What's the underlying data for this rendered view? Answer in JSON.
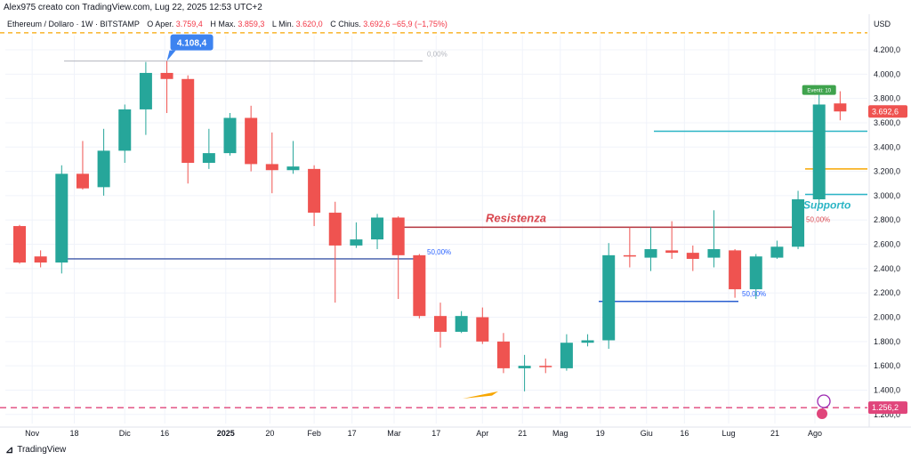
{
  "header": {
    "author_line": "Alex975 creato con TradingView.com, Lug 22, 2025 12:53 UTC+2",
    "symbol": "Ethereum / Dollaro · 1W · BITSTAMP",
    "open_label": "O",
    "open_name": "Aper.",
    "open": "3.759,4",
    "high_label": "H",
    "high_name": "Max.",
    "high": "3.859,3",
    "low_label": "L",
    "low_name": "Min.",
    "low": "3.620,0",
    "close_label": "C",
    "close_name": "Chius.",
    "close": "3.692,6",
    "change": "−65,9 (−1,75%)",
    "currency": "USD"
  },
  "footer": {
    "brand": "TradingView",
    "logo_icon": "tradingview-logo-icon"
  },
  "colors": {
    "up": "#26a69a",
    "down": "#ef5350",
    "resistance": "#b2333d",
    "support": "#2bb5c5",
    "fib": "#2962ff",
    "orange": "#f7a600",
    "dash_red": "#e0457b"
  },
  "chart_data": {
    "type": "candlestick",
    "title": "",
    "y_axis": {
      "ticks": [
        "4.200,0",
        "4.000,0",
        "3.800,0",
        "3.600,0",
        "3.400,0",
        "3.200,0",
        "3.000,0",
        "2.800,0",
        "2.600,0",
        "2.400,0",
        "2.200,0",
        "2.000,0",
        "1.800,0",
        "1.600,0",
        "1.400,0",
        "1.200,0"
      ],
      "tick_values": [
        4200,
        4000,
        3800,
        3600,
        3400,
        3200,
        3000,
        2800,
        2600,
        2400,
        2200,
        2000,
        1800,
        1600,
        1400,
        1200
      ],
      "range": [
        1030,
        4370
      ]
    },
    "x_axis": {
      "labels": [
        "Nov",
        "18",
        "Dic",
        "16",
        "2025",
        "20",
        "Feb",
        "17",
        "Mar",
        "17",
        "Apr",
        "21",
        "Mag",
        "19",
        "Giu",
        "16",
        "Lug",
        "21",
        "Ago"
      ],
      "label_week_index": [
        0.6,
        2.6,
        5.0,
        6.9,
        9.8,
        11.9,
        14.0,
        15.8,
        17.8,
        19.8,
        22.0,
        23.9,
        25.7,
        27.6,
        29.8,
        31.6,
        33.7,
        35.9,
        37.8
      ]
    },
    "candles": [
      {
        "o": 2750,
        "h": 2760,
        "l": 2440,
        "c": 2450
      },
      {
        "o": 2500,
        "h": 2550,
        "l": 2410,
        "c": 2450
      },
      {
        "o": 2450,
        "h": 3250,
        "l": 2360,
        "c": 3180
      },
      {
        "o": 3180,
        "h": 3450,
        "l": 3050,
        "c": 3060
      },
      {
        "o": 3070,
        "h": 3550,
        "l": 3000,
        "c": 3370
      },
      {
        "o": 3370,
        "h": 3750,
        "l": 3270,
        "c": 3710
      },
      {
        "o": 3710,
        "h": 4100,
        "l": 3500,
        "c": 4010
      },
      {
        "o": 4010,
        "h": 4108,
        "l": 3680,
        "c": 3960
      },
      {
        "o": 3960,
        "h": 3990,
        "l": 3100,
        "c": 3270
      },
      {
        "o": 3270,
        "h": 3550,
        "l": 3220,
        "c": 3350
      },
      {
        "o": 3350,
        "h": 3680,
        "l": 3330,
        "c": 3640
      },
      {
        "o": 3640,
        "h": 3740,
        "l": 3200,
        "c": 3260
      },
      {
        "o": 3260,
        "h": 3520,
        "l": 3020,
        "c": 3210
      },
      {
        "o": 3210,
        "h": 3450,
        "l": 3180,
        "c": 3240
      },
      {
        "o": 3220,
        "h": 3250,
        "l": 2750,
        "c": 2860
      },
      {
        "o": 2860,
        "h": 2950,
        "l": 2120,
        "c": 2590
      },
      {
        "o": 2590,
        "h": 2780,
        "l": 2570,
        "c": 2640
      },
      {
        "o": 2640,
        "h": 2850,
        "l": 2560,
        "c": 2820
      },
      {
        "o": 2820,
        "h": 2830,
        "l": 2150,
        "c": 2510
      },
      {
        "o": 2510,
        "h": 2520,
        "l": 1990,
        "c": 2010
      },
      {
        "o": 2010,
        "h": 2120,
        "l": 1750,
        "c": 1880
      },
      {
        "o": 1880,
        "h": 2050,
        "l": 1870,
        "c": 2010
      },
      {
        "o": 2000,
        "h": 2080,
        "l": 1780,
        "c": 1800
      },
      {
        "o": 1800,
        "h": 1870,
        "l": 1540,
        "c": 1580
      },
      {
        "o": 1580,
        "h": 1690,
        "l": 1390,
        "c": 1600
      },
      {
        "o": 1600,
        "h": 1660,
        "l": 1540,
        "c": 1590
      },
      {
        "o": 1580,
        "h": 1860,
        "l": 1560,
        "c": 1790
      },
      {
        "o": 1790,
        "h": 1860,
        "l": 1760,
        "c": 1810
      },
      {
        "o": 1810,
        "h": 2610,
        "l": 1740,
        "c": 2510
      },
      {
        "o": 2510,
        "h": 2740,
        "l": 2410,
        "c": 2500
      },
      {
        "o": 2490,
        "h": 2740,
        "l": 2380,
        "c": 2560
      },
      {
        "o": 2550,
        "h": 2790,
        "l": 2480,
        "c": 2530
      },
      {
        "o": 2530,
        "h": 2590,
        "l": 2380,
        "c": 2480
      },
      {
        "o": 2490,
        "h": 2880,
        "l": 2410,
        "c": 2560
      },
      {
        "o": 2550,
        "h": 2560,
        "l": 2160,
        "c": 2230
      },
      {
        "o": 2230,
        "h": 2520,
        "l": 2150,
        "c": 2500
      },
      {
        "o": 2490,
        "h": 2630,
        "l": 2480,
        "c": 2580
      },
      {
        "o": 2580,
        "h": 3040,
        "l": 2560,
        "c": 2970
      },
      {
        "o": 2970,
        "h": 3850,
        "l": 2930,
        "c": 3750
      },
      {
        "o": 3759,
        "h": 3859,
        "l": 3620,
        "c": 3693
      }
    ],
    "annotations": {
      "ath_label": "4.108,4",
      "fib_top_label": "0,00%",
      "fib_50_left_label": "50,00%",
      "fib_50_right_label": "50,00%",
      "fib_50_upper_label": "50,00%",
      "resistance_label": "Resistenza",
      "support_label": "Supporto",
      "event_badge": "Eventi: 10",
      "price_badge": "3.692,6",
      "bottom_badge": "1.256,2"
    },
    "levels": {
      "ath": 4108,
      "fib_top": 4108,
      "fib_50_left": 2480,
      "resistance": 2740,
      "fib_50_right": 2130,
      "support_upper": 3530,
      "support_orange": 3220,
      "support_lower": 3010,
      "dashed_top": 4340,
      "dashed_bottom": 1256
    }
  }
}
